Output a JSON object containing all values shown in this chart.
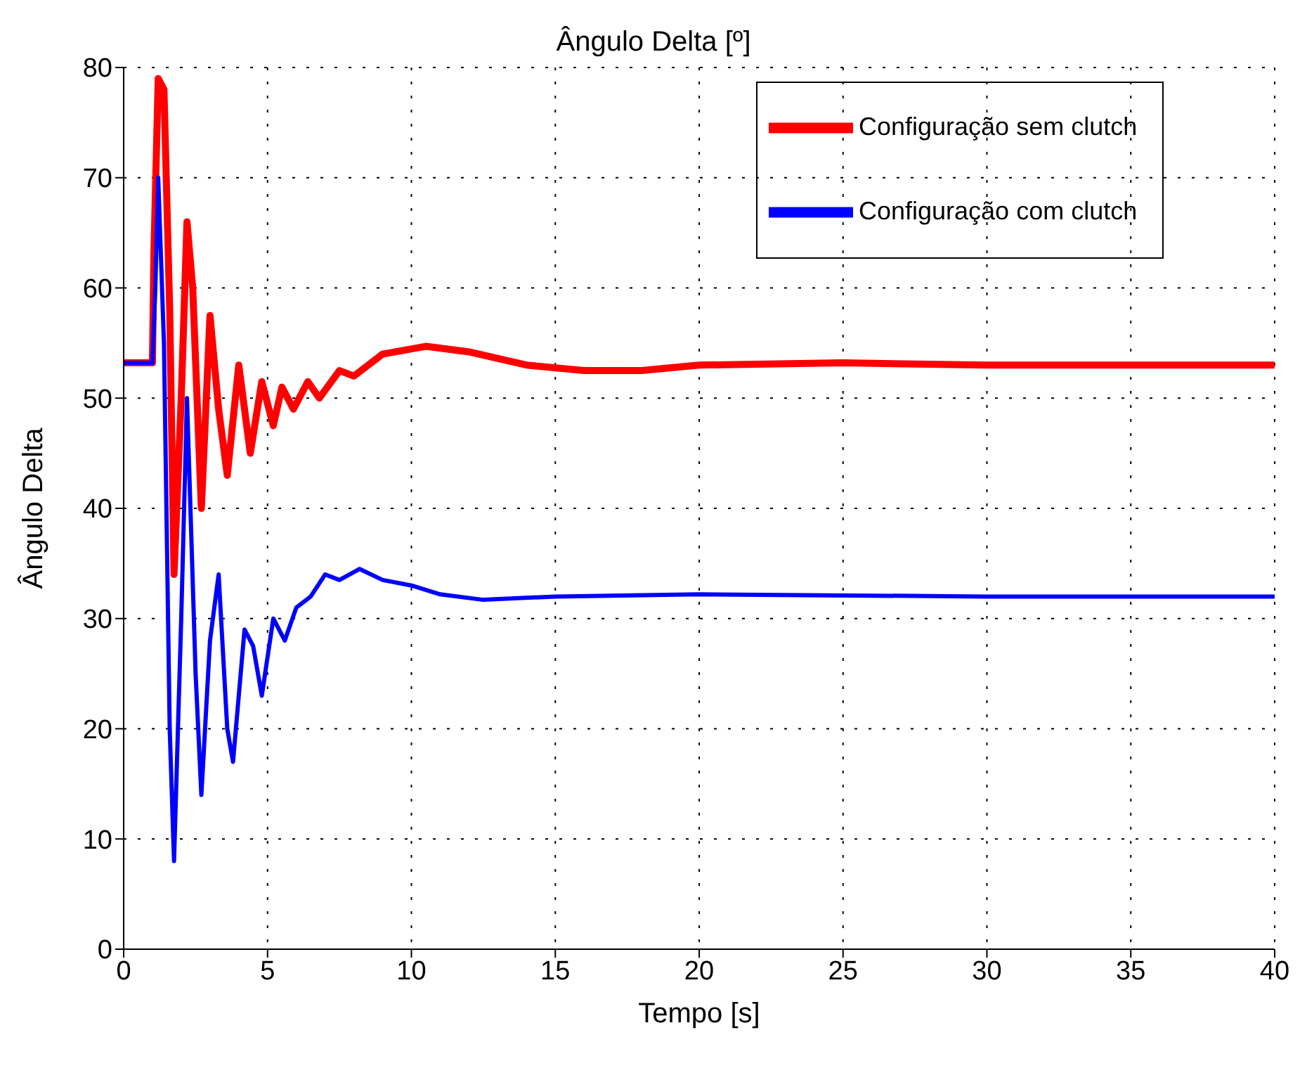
{
  "chart_data": {
    "type": "line",
    "title": "Ângulo Delta [º]",
    "xlabel": "Tempo [s]",
    "ylabel": "Ângulo Delta",
    "xlim": [
      0,
      40
    ],
    "ylim": [
      0,
      80
    ],
    "xticks": [
      0,
      5,
      10,
      15,
      20,
      25,
      30,
      35,
      40
    ],
    "yticks": [
      0,
      10,
      20,
      30,
      40,
      50,
      60,
      70,
      80
    ],
    "grid": true,
    "legend": "top right",
    "marker": "none",
    "line_style": "solid",
    "series": [
      {
        "name": "Configuração sem clutch",
        "color": "#ff0000",
        "x": [
          0,
          1.0,
          1.05,
          1.2,
          1.4,
          1.6,
          1.75,
          2.0,
          2.2,
          2.4,
          2.7,
          3.0,
          3.3,
          3.6,
          4.0,
          4.4,
          4.8,
          5.2,
          5.5,
          5.9,
          6.4,
          6.8,
          7.5,
          8,
          9,
          10.5,
          12,
          14,
          16,
          18,
          20,
          25,
          30,
          40
        ],
        "values": [
          53.2,
          53.2,
          63,
          79,
          78,
          58,
          34,
          50,
          66,
          60,
          40,
          57.5,
          49,
          43,
          53,
          45,
          51.5,
          47.5,
          51,
          49,
          51.5,
          50,
          52.5,
          52,
          54,
          54.7,
          54.2,
          53,
          52.5,
          52.5,
          53,
          53.2,
          53,
          53
        ]
      },
      {
        "name": "Configuração com clutch",
        "color": "#0000ff",
        "x": [
          0,
          1.0,
          1.1,
          1.2,
          1.4,
          1.6,
          1.75,
          2.0,
          2.2,
          2.5,
          2.7,
          3.0,
          3.3,
          3.6,
          3.8,
          4.2,
          4.5,
          4.8,
          5.2,
          5.6,
          6.0,
          6.5,
          7.0,
          7.5,
          8.2,
          9,
          10,
          11,
          12.5,
          15,
          20,
          30,
          40
        ],
        "values": [
          53.2,
          53.2,
          60,
          70,
          55,
          20,
          8,
          30,
          50,
          25,
          14,
          28,
          34,
          20,
          17,
          29,
          27.5,
          23,
          30,
          28,
          31,
          32,
          34,
          33.5,
          34.5,
          33.5,
          33,
          32.2,
          31.7,
          32,
          32.2,
          32,
          32
        ]
      }
    ]
  }
}
